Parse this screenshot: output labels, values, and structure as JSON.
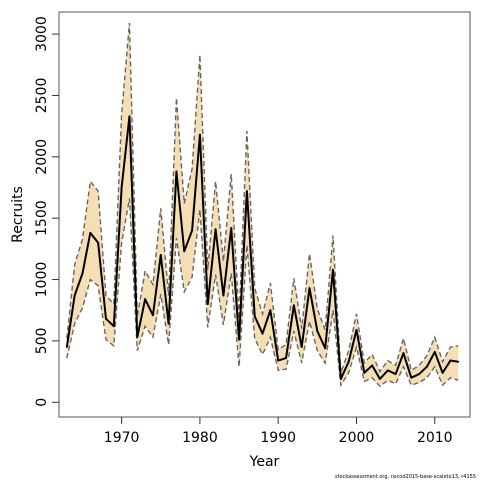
{
  "chart_data": {
    "type": "line",
    "xlabel": "Year",
    "ylabel": "Recruits",
    "xlim": [
      1962.0,
      2014.5
    ],
    "ylim": [
      -120,
      3180
    ],
    "x_ticks": [
      1970,
      1980,
      1990,
      2000,
      2010
    ],
    "y_ticks": [
      0,
      500,
      1000,
      1500,
      2000,
      2500,
      3000
    ],
    "grid": false,
    "legend": "none",
    "footnote": "stockassessment.org, nscod2015-base-scaleto13, r4155",
    "colors": {
      "estimate": "#000000",
      "confidence_band_fill": "#f5deb3",
      "confidence_band_line": "#666666"
    },
    "series": [
      {
        "role": "estimate",
        "x": [
          1963,
          1964,
          1965,
          1966,
          1967,
          1968,
          1969,
          1970,
          1971,
          1972,
          1973,
          1974,
          1975,
          1976,
          1977,
          1978,
          1979,
          1980,
          1981,
          1982,
          1983,
          1984,
          1985,
          1986,
          1987,
          1988,
          1989,
          1990,
          1991,
          1992,
          1993,
          1994,
          1995,
          1996,
          1997,
          1998,
          1999,
          2000,
          2001,
          2002,
          2003,
          2004,
          2005,
          2006,
          2007,
          2008,
          2009,
          2010,
          2011,
          2012,
          2013
        ],
        "values": [
          450,
          870,
          1050,
          1380,
          1300,
          680,
          620,
          1750,
          2330,
          530,
          840,
          710,
          1200,
          640,
          1880,
          1230,
          1400,
          2180,
          800,
          1410,
          870,
          1420,
          510,
          1720,
          700,
          560,
          750,
          340,
          360,
          790,
          450,
          930,
          580,
          440,
          1080,
          190,
          330,
          590,
          240,
          300,
          190,
          260,
          230,
          400,
          200,
          230,
          290,
          410,
          240,
          340,
          330
        ]
      },
      {
        "role": "upper",
        "x": [
          1963,
          1964,
          1965,
          1966,
          1967,
          1968,
          1969,
          1970,
          1971,
          1972,
          1973,
          1974,
          1975,
          1976,
          1977,
          1978,
          1979,
          1980,
          1981,
          1982,
          1983,
          1984,
          1985,
          1986,
          1987,
          1988,
          1989,
          1990,
          1991,
          1992,
          1993,
          1994,
          1995,
          1996,
          1997,
          1998,
          1999,
          2000,
          2001,
          2002,
          2003,
          2004,
          2005,
          2006,
          2007,
          2008,
          2009,
          2010,
          2011,
          2012,
          2013
        ],
        "values": [
          520,
          1120,
          1330,
          1800,
          1720,
          870,
          800,
          2350,
          3090,
          700,
          1070,
          960,
          1580,
          870,
          2480,
          1620,
          1900,
          2830,
          1080,
          1800,
          1150,
          1860,
          680,
          2210,
          930,
          720,
          970,
          430,
          470,
          1010,
          600,
          1210,
          760,
          590,
          1360,
          240,
          420,
          720,
          320,
          390,
          250,
          340,
          300,
          520,
          260,
          300,
          380,
          530,
          330,
          450,
          460
        ]
      },
      {
        "role": "lower",
        "x": [
          1963,
          1964,
          1965,
          1966,
          1967,
          1968,
          1969,
          1970,
          1971,
          1972,
          1973,
          1974,
          1975,
          1976,
          1977,
          1978,
          1979,
          1980,
          1981,
          1982,
          1983,
          1984,
          1985,
          1986,
          1987,
          1988,
          1989,
          1990,
          1991,
          1992,
          1993,
          1994,
          1995,
          1996,
          1997,
          1998,
          1999,
          2000,
          2001,
          2002,
          2003,
          2004,
          2005,
          2006,
          2007,
          2008,
          2009,
          2010,
          2011,
          2012,
          2013
        ],
        "values": [
          360,
          640,
          770,
          1000,
          950,
          510,
          460,
          1300,
          1660,
          420,
          620,
          530,
          880,
          470,
          1340,
          900,
          1020,
          1570,
          610,
          1040,
          630,
          1050,
          290,
          1280,
          520,
          390,
          530,
          260,
          270,
          580,
          320,
          660,
          420,
          320,
          750,
          140,
          240,
          450,
          170,
          200,
          130,
          180,
          150,
          290,
          140,
          160,
          200,
          290,
          140,
          200,
          180
        ]
      }
    ]
  }
}
